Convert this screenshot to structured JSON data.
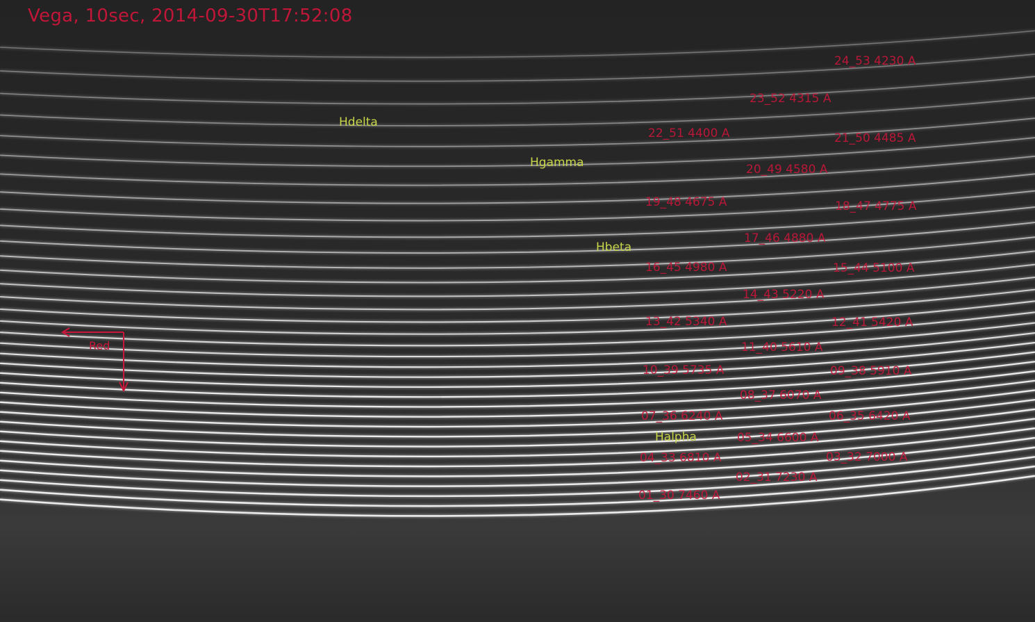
{
  "title": "Vega, 10sec, 2014-09-30T17:52:08",
  "colors": {
    "order_label": "#c9163a",
    "line_label": "#c8d64a",
    "background": "#2a2a2a"
  },
  "spectral_lines": [
    {
      "name": "Hdelta"
    },
    {
      "name": "Hgamma"
    },
    {
      "name": "Hbeta"
    },
    {
      "name": "Halpha"
    }
  ],
  "orientation": {
    "label": "Red"
  },
  "orders": [
    {
      "label": "24_53 4230 A"
    },
    {
      "label": "23_52 4315 A"
    },
    {
      "label": "22_51 4400 A"
    },
    {
      "label": "21_50 4485 A"
    },
    {
      "label": "20_49 4580 A"
    },
    {
      "label": "19_48 4675 A"
    },
    {
      "label": "18_47 4775 A"
    },
    {
      "label": "17_46 4880 A"
    },
    {
      "label": "16_45 4980 A"
    },
    {
      "label": "15_44 5100 A"
    },
    {
      "label": "14_43 5220 A"
    },
    {
      "label": "13_42 5340 A"
    },
    {
      "label": "12_41 5420 A"
    },
    {
      "label": "11_40 5610 A"
    },
    {
      "label": "10_39 5735 A"
    },
    {
      "label": "09_38 5910 A"
    },
    {
      "label": "08_37 6070 A"
    },
    {
      "label": "07_36 6240 A"
    },
    {
      "label": "06_35 6420 A"
    },
    {
      "label": "05_34 6600 A"
    },
    {
      "label": "04_33 6810 A"
    },
    {
      "label": "03_32 7000 A"
    },
    {
      "label": "02_31 7230 A"
    },
    {
      "label": "01_30 7460 A"
    }
  ]
}
